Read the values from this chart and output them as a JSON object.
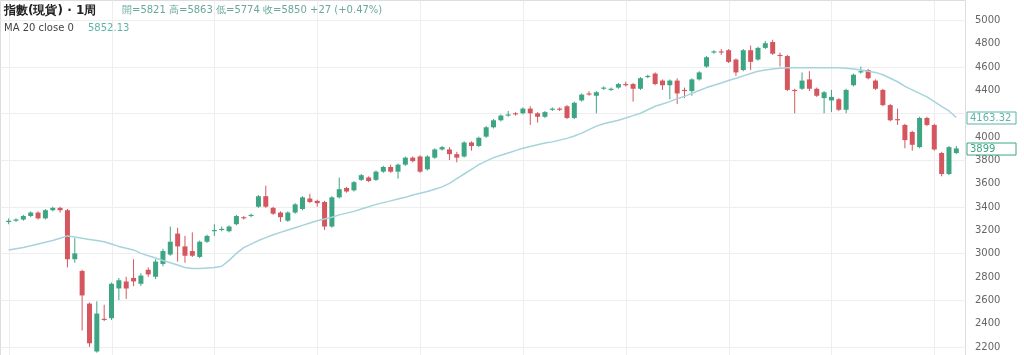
{
  "chart_data": {
    "type": "candlestick",
    "title": "指數(現貨) · 1周",
    "annotations": [
      "開=5821 高=5863 低=5774 收=5850 +27 (+0.47%)",
      "5852.13",
      "4163.32",
      "3899"
    ],
    "categories": [
      null,
      null,
      null,
      null,
      null,
      null,
      null,
      null,
      null,
      null,
      null,
      null,
      null,
      null,
      null,
      null,
      null,
      null,
      null,
      null,
      null,
      null,
      null,
      null,
      null,
      null,
      null,
      null,
      null,
      null,
      null,
      null,
      null,
      null,
      null,
      null,
      null,
      null,
      null,
      null,
      null,
      null,
      null,
      null,
      null,
      null,
      null,
      null,
      null,
      null,
      null,
      null,
      null,
      null,
      null,
      null,
      null,
      null,
      null,
      null,
      null,
      null,
      null,
      null,
      null,
      null,
      null,
      null,
      null,
      null,
      null,
      null,
      null,
      null,
      null,
      null,
      null,
      null,
      null,
      null,
      null,
      null,
      null,
      null,
      null,
      null,
      null,
      null,
      null,
      null,
      null,
      null,
      null,
      null,
      null,
      null,
      null,
      null,
      null,
      null,
      null,
      null,
      null,
      null,
      null,
      null,
      null,
      null,
      null,
      null,
      null,
      null,
      null,
      null,
      null,
      null,
      null,
      null,
      null,
      null,
      null,
      null,
      null,
      null,
      null,
      null,
      null,
      null,
      null,
      null
    ],
    "colors": [
      "#3da584",
      "#3da584",
      "#3da584",
      "#3da584",
      "#d4575f",
      "#3da584",
      "#3da584",
      "#d4575f",
      "#d4575f",
      "#3da584",
      "#d4575f",
      "#d4575f",
      "#3da584",
      "#d4575f",
      "#3da584",
      "#3da584",
      "#d4575f",
      "#d4575f",
      "#3da584",
      "#d4575f",
      "#3da584",
      "#3da584",
      "#3da584",
      "#d4575f",
      "#d4575f",
      "#d4575f",
      "#3da584",
      "#3da584",
      "#3da584",
      "#3da584",
      "#3da584",
      "#3da584",
      "#d4575f",
      "#3da584",
      "#3da584",
      "#d4575f",
      "#d4575f",
      "#d4575f",
      "#3da584",
      "#3da584",
      "#3da584",
      "#d4575f",
      "#d4575f",
      "#d4575f",
      "#3da584",
      "#3da584",
      "#d4575f",
      "#3da584",
      "#3da584",
      "#d4575f",
      "#3da584",
      "#3da584",
      "#d4575f",
      "#3da584",
      "#3da584",
      "#d4575f",
      "#d4575f",
      "#3da584",
      "#3da584",
      "#3da584",
      "#d4575f",
      "#d4575f",
      "#3da584",
      "#d4575f",
      "#3da584",
      "#3da584",
      "#3da584",
      "#3da584",
      "#3da584",
      "#d4575f",
      "#3da584",
      "#d4575f",
      "#d4575f",
      "#3da584",
      "#3da584",
      "#d4575f",
      "#d4575f",
      "#3da584",
      "#3da584",
      "#d4575f",
      "#3da584",
      "#3da584",
      "#3da584",
      "#3da584",
      "#d4575f",
      "#d4575f",
      "#3da584",
      "#3da584",
      "#d4575f",
      "#d4575f",
      "#3da584",
      "#d4575f",
      "#d4575f",
      "#3da584",
      "#3da584",
      "#3da584",
      "#3da584",
      "#d4575f",
      "#d4575f",
      "#d4575f",
      "#3da584",
      "#d4575f",
      "#3da584",
      "#3da584",
      "#d4575f",
      "#d4575f",
      "#d4575f",
      "#d4575f",
      "#3da584",
      "#d4575f",
      "#d4575f",
      "#3da584",
      "#3da584",
      "#d4575f",
      "#3da584",
      "#3da584",
      "#3da584",
      "#d4575f",
      "#d4575f",
      "#d4575f",
      "#d4575f",
      "#d4575f",
      "#d4575f",
      "#d4575f",
      "#3da584",
      "#d4575f",
      "#d4575f",
      "#d4575f",
      "#3da584",
      "#3da584"
    ],
    "ohlc": [
      [
        3270,
        3300,
        3250,
        3280
      ],
      [
        3280,
        3300,
        3270,
        3290
      ],
      [
        3290,
        3330,
        3280,
        3320
      ],
      [
        3320,
        3360,
        3310,
        3350
      ],
      [
        3350,
        3360,
        3290,
        3300
      ],
      [
        3300,
        3380,
        3290,
        3370
      ],
      [
        3370,
        3400,
        3360,
        3390
      ],
      [
        3390,
        3400,
        3350,
        3370
      ],
      [
        3370,
        3380,
        2880,
        2950
      ],
      [
        2950,
        3130,
        2920,
        3000
      ],
      [
        2850,
        2860,
        2340,
        2640
      ],
      [
        2570,
        2580,
        2200,
        2230
      ],
      [
        2160,
        2590,
        2150,
        2485
      ],
      [
        2440,
        2560,
        2420,
        2430
      ],
      [
        2445,
        2750,
        2430,
        2740
      ],
      [
        2700,
        2790,
        2600,
        2770
      ],
      [
        2760,
        2800,
        2610,
        2700
      ],
      [
        2790,
        2950,
        2720,
        2760
      ],
      [
        2740,
        2830,
        2720,
        2810
      ],
      [
        2860,
        2880,
        2800,
        2820
      ],
      [
        2800,
        2950,
        2780,
        2930
      ],
      [
        2910,
        3040,
        2890,
        3020
      ],
      [
        2990,
        3230,
        2980,
        3100
      ],
      [
        3170,
        3220,
        2930,
        3060
      ],
      [
        3060,
        3150,
        2920,
        2980
      ],
      [
        3020,
        3180,
        2970,
        2980
      ],
      [
        2970,
        3110,
        2960,
        3100
      ],
      [
        3100,
        3160,
        3090,
        3150
      ],
      [
        3190,
        3250,
        3150,
        3200
      ],
      [
        3200,
        3230,
        3190,
        3210
      ],
      [
        3190,
        3240,
        3180,
        3230
      ],
      [
        3250,
        3330,
        3240,
        3320
      ],
      [
        3310,
        3320,
        3290,
        3300
      ],
      [
        3320,
        3340,
        3310,
        3330
      ],
      [
        3400,
        3500,
        3390,
        3490
      ],
      [
        3490,
        3580,
        3390,
        3400
      ],
      [
        3390,
        3400,
        3330,
        3340
      ],
      [
        3350,
        3360,
        3270,
        3310
      ],
      [
        3280,
        3360,
        3270,
        3350
      ],
      [
        3350,
        3430,
        3340,
        3420
      ],
      [
        3380,
        3490,
        3370,
        3480
      ],
      [
        3470,
        3510,
        3430,
        3440
      ],
      [
        3450,
        3460,
        3400,
        3430
      ],
      [
        3440,
        3450,
        3200,
        3230
      ],
      [
        3230,
        3490,
        3220,
        3480
      ],
      [
        3480,
        3650,
        3470,
        3550
      ],
      [
        3560,
        3570,
        3520,
        3530
      ],
      [
        3540,
        3620,
        3530,
        3610
      ],
      [
        3630,
        3680,
        3620,
        3670
      ],
      [
        3650,
        3660,
        3610,
        3620
      ],
      [
        3630,
        3710,
        3620,
        3700
      ],
      [
        3700,
        3750,
        3690,
        3740
      ],
      [
        3740,
        3760,
        3690,
        3700
      ],
      [
        3700,
        3770,
        3640,
        3760
      ],
      [
        3760,
        3830,
        3750,
        3820
      ],
      [
        3820,
        3830,
        3780,
        3790
      ],
      [
        3830,
        3840,
        3690,
        3700
      ],
      [
        3720,
        3840,
        3710,
        3830
      ],
      [
        3820,
        3900,
        3810,
        3890
      ],
      [
        3890,
        3920,
        3880,
        3910
      ],
      [
        3890,
        3910,
        3800,
        3850
      ],
      [
        3850,
        3870,
        3780,
        3820
      ],
      [
        3830,
        3960,
        3820,
        3950
      ],
      [
        3950,
        3960,
        3880,
        3920
      ],
      [
        3920,
        4000,
        3910,
        3990
      ],
      [
        4000,
        4090,
        3990,
        4080
      ],
      [
        4080,
        4150,
        4070,
        4140
      ],
      [
        4140,
        4190,
        4130,
        4180
      ],
      [
        4180,
        4220,
        4170,
        4190
      ],
      [
        4200,
        4210,
        4180,
        4190
      ],
      [
        4200,
        4250,
        4190,
        4240
      ],
      [
        4240,
        4260,
        4100,
        4200
      ],
      [
        4200,
        4210,
        4120,
        4170
      ],
      [
        4170,
        4220,
        4160,
        4210
      ],
      [
        4230,
        4250,
        4220,
        4240
      ],
      [
        4240,
        4250,
        4220,
        4230
      ],
      [
        4260,
        4270,
        4150,
        4160
      ],
      [
        4160,
        4300,
        4150,
        4290
      ],
      [
        4310,
        4370,
        4300,
        4360
      ],
      [
        4370,
        4390,
        4350,
        4360
      ],
      [
        4350,
        4390,
        4200,
        4380
      ],
      [
        4410,
        4430,
        4400,
        4420
      ],
      [
        4400,
        4420,
        4390,
        4410
      ],
      [
        4420,
        4460,
        4410,
        4450
      ],
      [
        4450,
        4470,
        4430,
        4440
      ],
      [
        4450,
        4460,
        4300,
        4410
      ],
      [
        4410,
        4510,
        4400,
        4500
      ],
      [
        4510,
        4530,
        4500,
        4520
      ],
      [
        4540,
        4550,
        4440,
        4450
      ],
      [
        4480,
        4490,
        4400,
        4440
      ],
      [
        4440,
        4490,
        4320,
        4480
      ],
      [
        4480,
        4500,
        4280,
        4370
      ],
      [
        4400,
        4420,
        4330,
        4390
      ],
      [
        4390,
        4500,
        4350,
        4490
      ],
      [
        4490,
        4560,
        4480,
        4550
      ],
      [
        4600,
        4690,
        4590,
        4680
      ],
      [
        4720,
        4740,
        4710,
        4730
      ],
      [
        4730,
        4750,
        4700,
        4720
      ],
      [
        4740,
        4750,
        4630,
        4640
      ],
      [
        4660,
        4670,
        4520,
        4550
      ],
      [
        4570,
        4750,
        4560,
        4740
      ],
      [
        4740,
        4780,
        4570,
        4640
      ],
      [
        4660,
        4770,
        4650,
        4760
      ],
      [
        4760,
        4820,
        4750,
        4800
      ],
      [
        4810,
        4830,
        4700,
        4710
      ],
      [
        4700,
        4720,
        4600,
        4690
      ],
      [
        4690,
        4700,
        4390,
        4400
      ],
      [
        4400,
        4410,
        4200,
        4390
      ],
      [
        4410,
        4550,
        4400,
        4480
      ],
      [
        4490,
        4560,
        4390,
        4410
      ],
      [
        4410,
        4420,
        4340,
        4350
      ],
      [
        4330,
        4390,
        4200,
        4380
      ],
      [
        4310,
        4400,
        4210,
        4340
      ],
      [
        4320,
        4330,
        4220,
        4230
      ],
      [
        4230,
        4410,
        4200,
        4400
      ],
      [
        4440,
        4540,
        4430,
        4530
      ],
      [
        4550,
        4600,
        4540,
        4560
      ],
      [
        4570,
        4580,
        4490,
        4500
      ],
      [
        4480,
        4490,
        4400,
        4410
      ],
      [
        4400,
        4410,
        4260,
        4270
      ],
      [
        4270,
        4280,
        4130,
        4140
      ],
      [
        4150,
        4240,
        4100,
        4140
      ],
      [
        4100,
        4110,
        3900,
        3970
      ],
      [
        4040,
        4050,
        3880,
        3930
      ],
      [
        3910,
        4170,
        3900,
        4160
      ],
      [
        4160,
        4170,
        4090,
        4100
      ],
      [
        4100,
        4110,
        3880,
        3890
      ],
      [
        3860,
        3870,
        3660,
        3680
      ],
      [
        3680,
        3920,
        3670,
        3910
      ],
      [
        3860,
        3920,
        3850,
        3899
      ]
    ],
    "series": [
      {
        "name": "MA 20 close 0",
        "type": "line",
        "color": "#a6d3dc",
        "values": [
          3030,
          3040,
          3050,
          3065,
          3080,
          3095,
          3110,
          3130,
          3150,
          3140,
          3130,
          3120,
          3110,
          3100,
          3080,
          3060,
          3045,
          3030,
          3000,
          2980,
          2960,
          2940,
          2920,
          2900,
          2880,
          2870,
          2870,
          2875,
          2880,
          2890,
          2940,
          3000,
          3050,
          3080,
          3110,
          3135,
          3160,
          3180,
          3200,
          3220,
          3240,
          3260,
          3280,
          3295,
          3310,
          3330,
          3345,
          3360,
          3380,
          3400,
          3420,
          3435,
          3450,
          3465,
          3480,
          3500,
          3515,
          3530,
          3550,
          3570,
          3600,
          3640,
          3680,
          3720,
          3760,
          3790,
          3820,
          3840,
          3860,
          3880,
          3900,
          3915,
          3930,
          3945,
          3955,
          3970,
          3985,
          4005,
          4030,
          4060,
          4090,
          4110,
          4125,
          4140,
          4160,
          4180,
          4200,
          4230,
          4260,
          4280,
          4300,
          4325,
          4345,
          4370,
          4395,
          4420,
          4440,
          4460,
          4480,
          4500,
          4520,
          4540,
          4560,
          4570,
          4580,
          4585,
          4590,
          4590,
          4590,
          4590,
          4590,
          4590,
          4590,
          4590,
          4585,
          4580,
          4570,
          4560,
          4550,
          4530,
          4500,
          4470,
          4430,
          4400,
          4370,
          4340,
          4300,
          4260,
          4220,
          4163.32
        ]
      }
    ],
    "ylim": [
      2130,
      5170
    ],
    "yticks": [
      2200,
      2400,
      2600,
      2800,
      3000,
      3200,
      3400,
      3600,
      3800,
      4000,
      {
        "value": 4200,
        "label": null
      },
      4400,
      4600,
      4800,
      5000
    ],
    "grid": true
  }
}
